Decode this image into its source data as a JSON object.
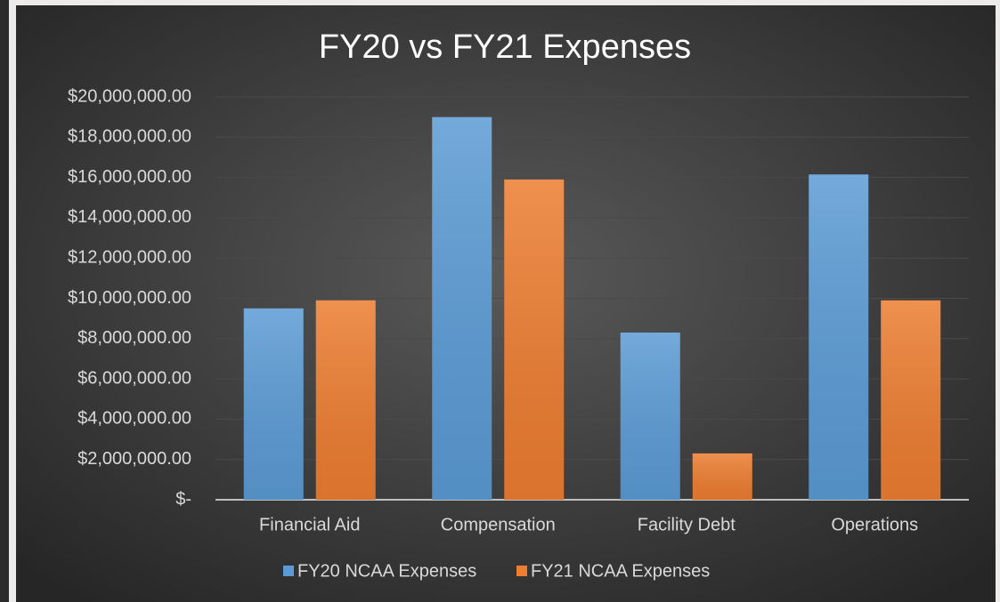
{
  "chart_data": {
    "type": "bar",
    "title": "FY20 vs FY21 Expenses",
    "categories": [
      "Financial Aid",
      "Compensation",
      "Facility Debt",
      "Operations"
    ],
    "series": [
      {
        "name": "FY20 NCAA Expenses",
        "color": "#5b9bd5",
        "values": [
          9500000,
          19000000,
          8300000,
          16150000
        ]
      },
      {
        "name": "FY21 NCAA Expenses",
        "color": "#ed7d31",
        "values": [
          9900000,
          15900000,
          2300000,
          9900000
        ]
      }
    ],
    "ylim": [
      0,
      20000000
    ],
    "yticks": [
      {
        "value": 0,
        "label": "$-"
      },
      {
        "value": 2000000,
        "label": "$2,000,000.00"
      },
      {
        "value": 4000000,
        "label": "$4,000,000.00"
      },
      {
        "value": 6000000,
        "label": "$6,000,000.00"
      },
      {
        "value": 8000000,
        "label": "$8,000,000.00"
      },
      {
        "value": 10000000,
        "label": "$10,000,000.00"
      },
      {
        "value": 12000000,
        "label": "$12,000,000.00"
      },
      {
        "value": 14000000,
        "label": "$14,000,000.00"
      },
      {
        "value": 16000000,
        "label": "$16,000,000.00"
      },
      {
        "value": 18000000,
        "label": "$18,000,000.00"
      },
      {
        "value": 20000000,
        "label": "$20,000,000.00"
      }
    ],
    "grid": true,
    "legend": "bottom"
  }
}
